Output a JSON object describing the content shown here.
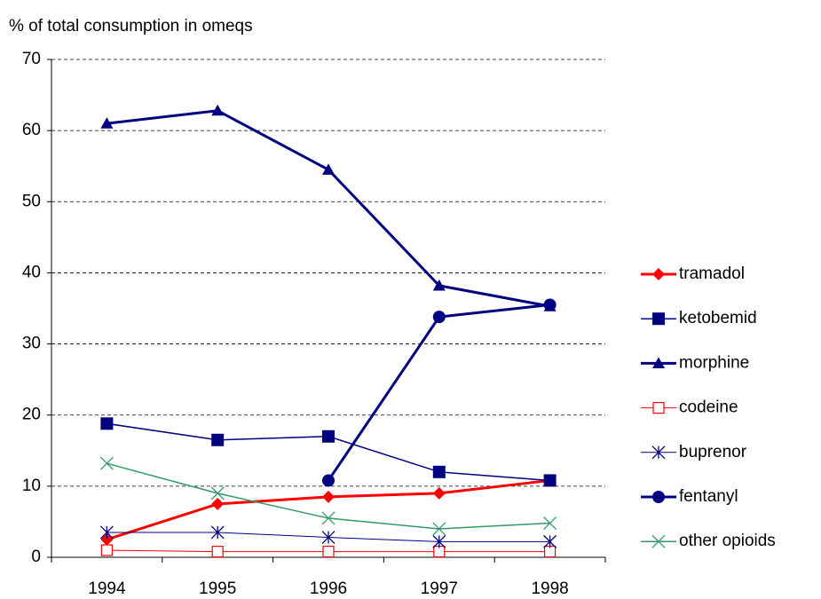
{
  "chart_data": {
    "type": "line",
    "y_label": "% of total consumption in omeqs",
    "categories": [
      "1994",
      "1995",
      "1996",
      "1997",
      "1998"
    ],
    "series": [
      {
        "name": "tramadol",
        "color": "#ff0000",
        "marker": "diamond",
        "line_width": 3,
        "values": [
          2.5,
          7.5,
          8.5,
          9,
          10.8
        ]
      },
      {
        "name": "ketobemid",
        "color": "#000080",
        "marker": "square",
        "line_width": 1.5,
        "values": [
          18.8,
          16.5,
          17,
          12,
          10.8
        ]
      },
      {
        "name": "morphine",
        "color": "#000080",
        "marker": "triangle",
        "line_width": 3,
        "values": [
          61,
          62.8,
          54.5,
          38.2,
          35.3
        ]
      },
      {
        "name": "codeine",
        "color": "#ff0000",
        "marker": "open-square",
        "line_width": 1,
        "values": [
          1,
          0.8,
          0.8,
          0.8,
          0.8
        ]
      },
      {
        "name": "buprenor",
        "color": "#000080",
        "marker": "asterisk",
        "line_width": 1,
        "values": [
          3.5,
          3.5,
          2.8,
          2.2,
          2.2
        ]
      },
      {
        "name": "fentanyl",
        "color": "#000080",
        "marker": "circle",
        "line_width": 3,
        "values": [
          null,
          null,
          10.8,
          33.8,
          35.5
        ]
      },
      {
        "name": "other opioids",
        "color": "#339966",
        "marker": "x",
        "line_width": 1.5,
        "values": [
          13.2,
          9,
          5.5,
          4,
          4.8
        ]
      }
    ],
    "ylim": [
      0,
      70
    ],
    "yticks": [
      0,
      10,
      20,
      30,
      40,
      50,
      60,
      70
    ],
    "grid": true,
    "legend": "right"
  }
}
